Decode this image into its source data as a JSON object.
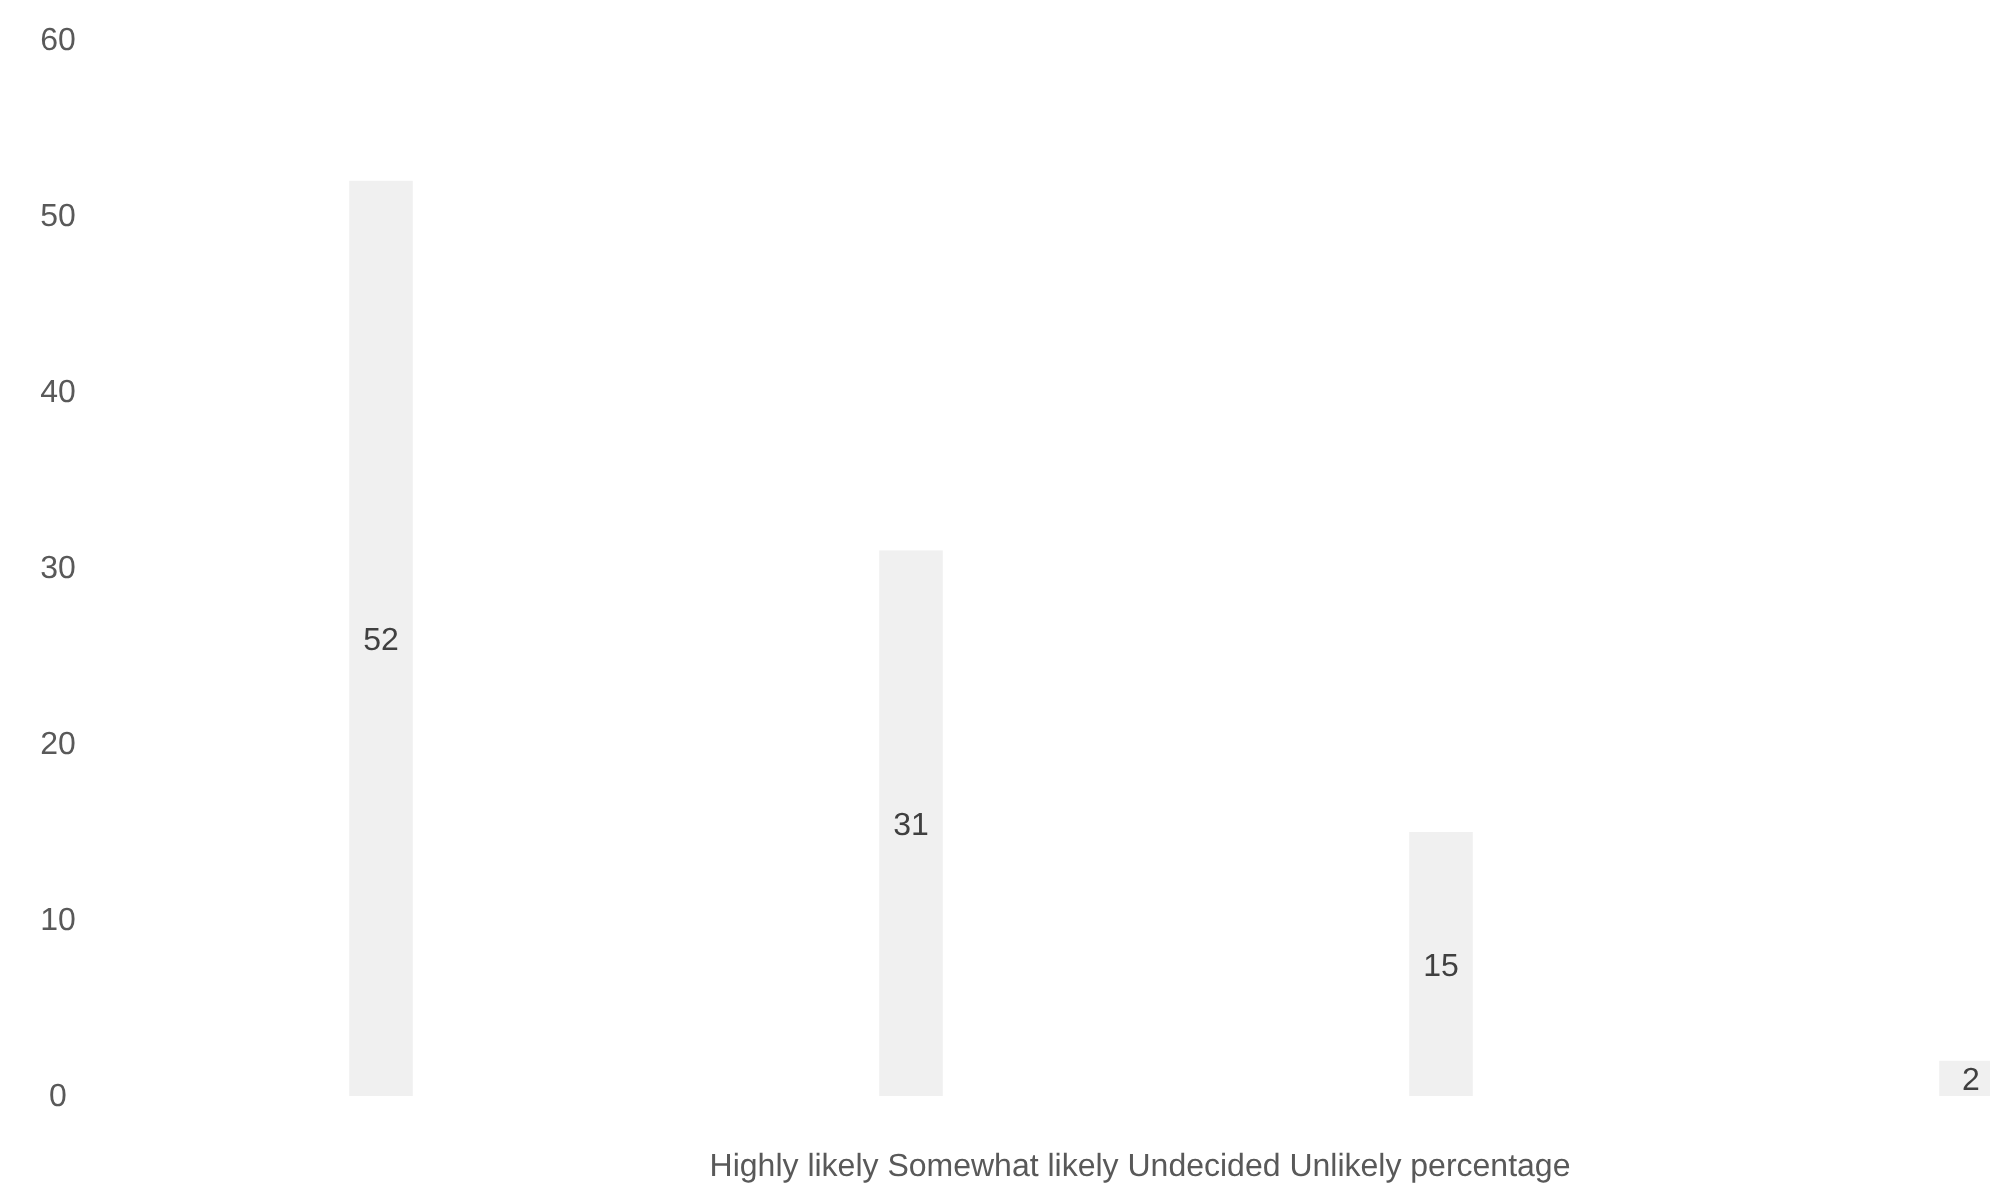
{
  "chart_data": {
    "type": "bar",
    "xlabel": "Highly likely Somewhat likely Undecided Unlikely percentage",
    "categories": [
      null,
      null,
      null,
      null
    ],
    "values": [
      52,
      31,
      15,
      2
    ],
    "color": "#f0f0f0",
    "ylim": [
      0,
      60
    ],
    "yticks": [
      0,
      10,
      20,
      30,
      40,
      50,
      60
    ],
    "data_labels": true,
    "grid": false
  }
}
